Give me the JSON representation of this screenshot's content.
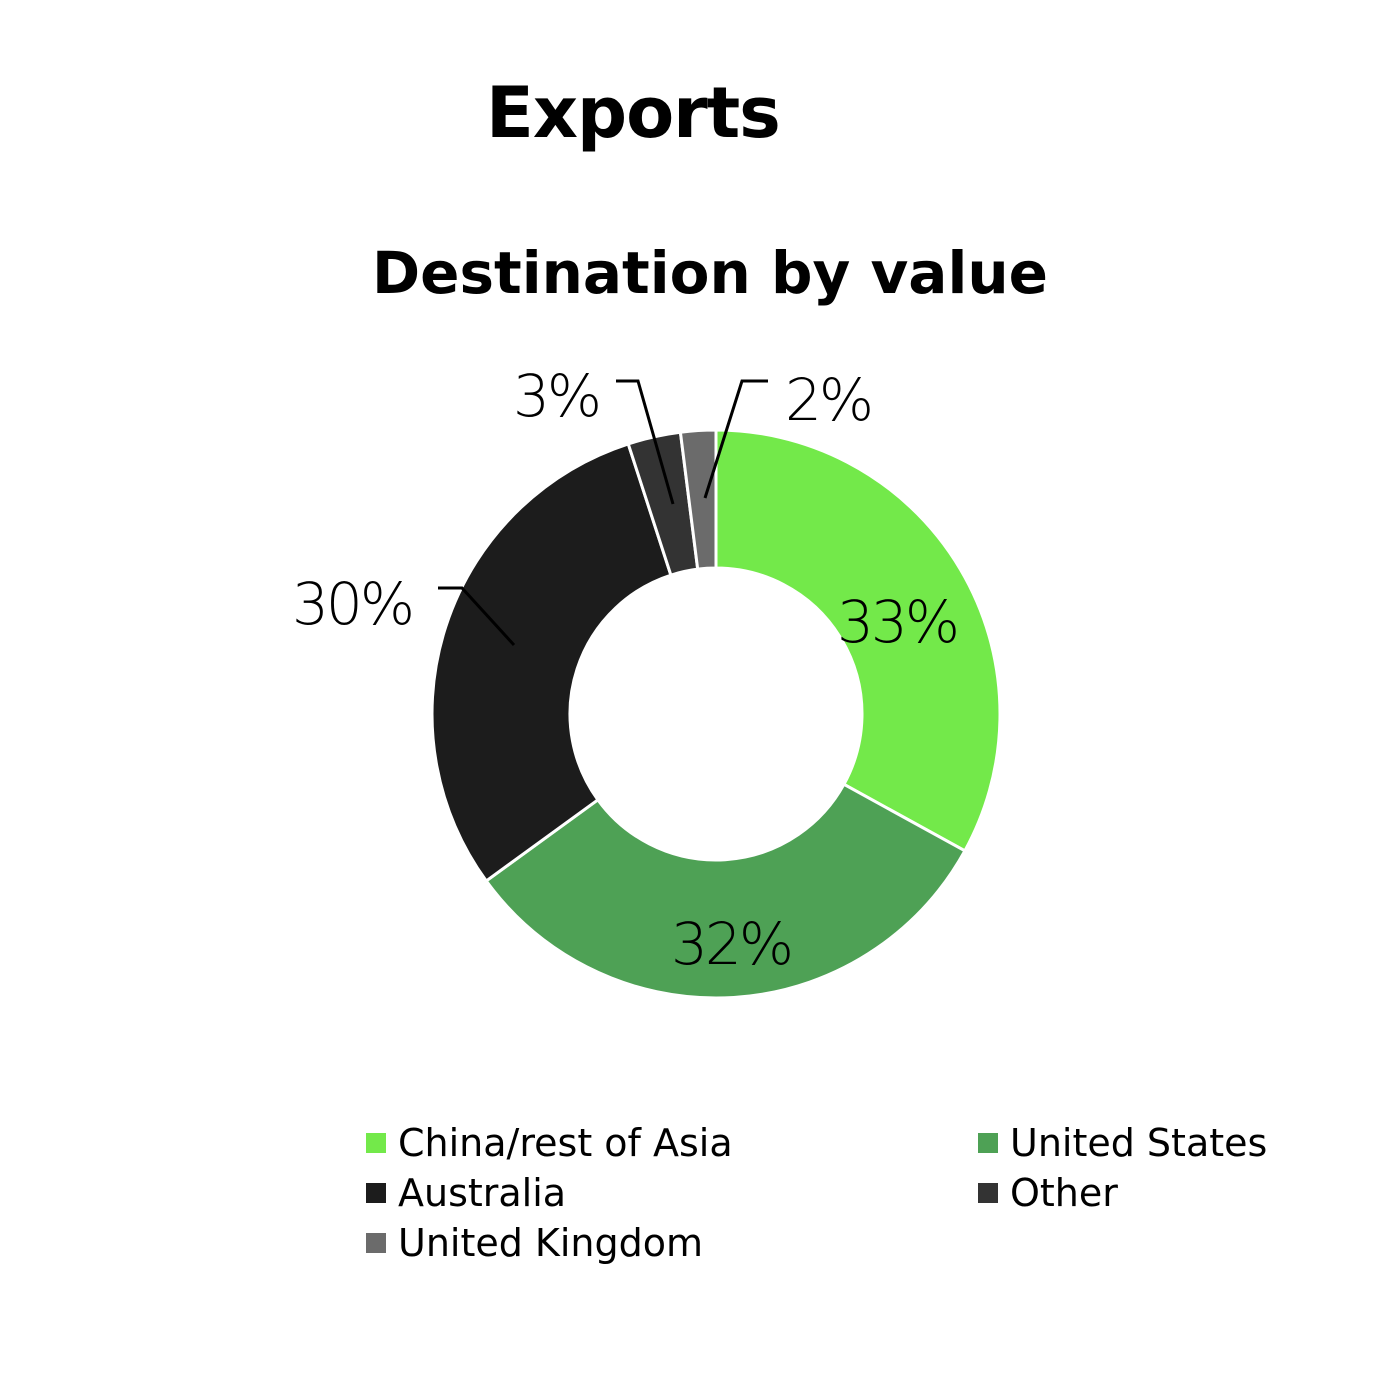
{
  "title": "Exports",
  "chart_data": {
    "type": "pie",
    "title": "Destination by value",
    "donut": true,
    "slices": [
      {
        "name": "China/rest of Asia",
        "value": 33,
        "label": "33%",
        "color": "#73e94a"
      },
      {
        "name": "United States",
        "value": 32,
        "label": "32%",
        "color": "#4ea155"
      },
      {
        "name": "Australia",
        "value": 30,
        "label": "30%",
        "color": "#1c1c1c"
      },
      {
        "name": "Other",
        "value": 3,
        "label": "3%",
        "color": "#333333"
      },
      {
        "name": "United Kingdom",
        "value": 2,
        "label": "2%",
        "color": "#6b6b6b"
      }
    ],
    "legend_position": "bottom"
  }
}
